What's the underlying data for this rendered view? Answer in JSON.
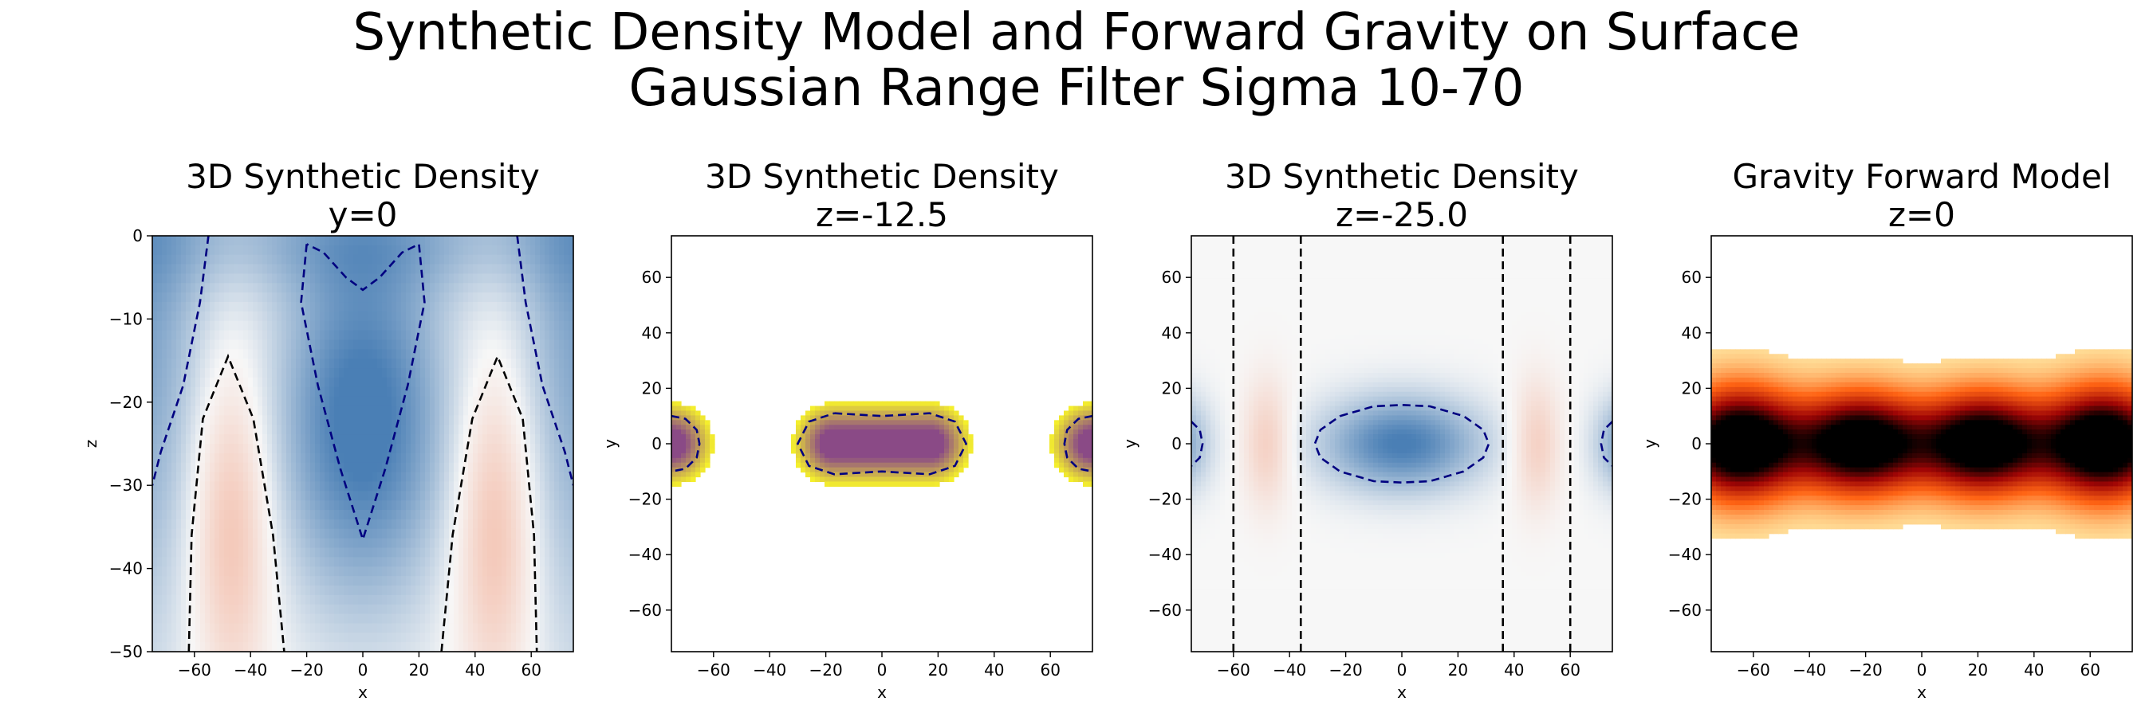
{
  "figure": {
    "title_line1": "Synthetic Density Model and Forward Gravity on Surface",
    "title_line2": "Gaussian Range Filter Sigma 10-70"
  },
  "chart_data": [
    {
      "type": "heatmap",
      "title_line1": "3D Synthetic Density",
      "title_line2": "y=0",
      "xlabel": "x",
      "ylabel": "z",
      "xlim": [
        -75,
        75
      ],
      "ylim": [
        -50,
        0
      ],
      "xticks": [
        -60,
        -40,
        -20,
        0,
        20,
        40,
        60
      ],
      "yticks": [
        0,
        -10,
        -20,
        -30,
        -40,
        -50
      ],
      "xtick_labels": [
        "−60",
        "−40",
        "−20",
        "0",
        "20",
        "40",
        "60"
      ],
      "ytick_labels": [
        "0",
        "−10",
        "−20",
        "−30",
        "−40",
        "−50"
      ],
      "colormap": "RdBu_r",
      "colors": {
        "negative": "#4a7fb5",
        "positive": "#f2a58a",
        "contour_negative": "#000080",
        "contour_positive": "#000000"
      }
    },
    {
      "type": "heatmap",
      "title_line1": "3D Synthetic Density",
      "title_line2": "z=-12.5",
      "xlabel": "x",
      "ylabel": "y",
      "xlim": [
        -75,
        75
      ],
      "ylim": [
        -75,
        75
      ],
      "xticks": [
        -60,
        -40,
        -20,
        0,
        20,
        40,
        60
      ],
      "yticks": [
        60,
        40,
        20,
        0,
        -20,
        -40,
        -60
      ],
      "xtick_labels": [
        "−60",
        "−40",
        "−20",
        "0",
        "20",
        "40",
        "60"
      ],
      "ytick_labels": [
        "60",
        "40",
        "20",
        "0",
        "−20",
        "−40",
        "−60"
      ],
      "colormap": "viridis_r masked",
      "colors": {
        "edge": "#f5f02c",
        "core": "#8a4a86",
        "contour": "#000080"
      }
    },
    {
      "type": "heatmap",
      "title_line1": "3D Synthetic Density",
      "title_line2": "z=-25.0",
      "xlabel": "x",
      "ylabel": "y",
      "xlim": [
        -75,
        75
      ],
      "ylim": [
        -75,
        75
      ],
      "xticks": [
        -60,
        -40,
        -20,
        0,
        20,
        40,
        60
      ],
      "yticks": [
        60,
        40,
        20,
        0,
        -20,
        -40,
        -60
      ],
      "xtick_labels": [
        "−60",
        "−40",
        "−20",
        "0",
        "20",
        "40",
        "60"
      ],
      "ytick_labels": [
        "60",
        "40",
        "20",
        "0",
        "−20",
        "−40",
        "−60"
      ],
      "vertical_contours_x": [
        -60,
        -36,
        36,
        60
      ],
      "colormap": "RdBu_r",
      "colors": {
        "negative": "#4a7fb5",
        "positive": "#f2a58a",
        "contour_negative": "#000080",
        "contour_positive": "#000000"
      }
    },
    {
      "type": "heatmap",
      "title_line1": "Gravity Forward Model",
      "title_line2": "z=0",
      "xlabel": "x",
      "ylabel": "y",
      "xlim": [
        -75,
        75
      ],
      "ylim": [
        -75,
        75
      ],
      "xticks": [
        -60,
        -40,
        -20,
        0,
        20,
        40,
        60
      ],
      "yticks": [
        60,
        40,
        20,
        0,
        -20,
        -40,
        -60
      ],
      "xtick_labels": [
        "−60",
        "−40",
        "−20",
        "0",
        "20",
        "40",
        "60"
      ],
      "ytick_labels": [
        "60",
        "40",
        "20",
        "0",
        "−20",
        "−40",
        "−60"
      ],
      "colormap": "gist_heat_r",
      "colors": {
        "peak": "#000000",
        "mid": "#b00000",
        "edge": "#ffb060"
      }
    }
  ]
}
